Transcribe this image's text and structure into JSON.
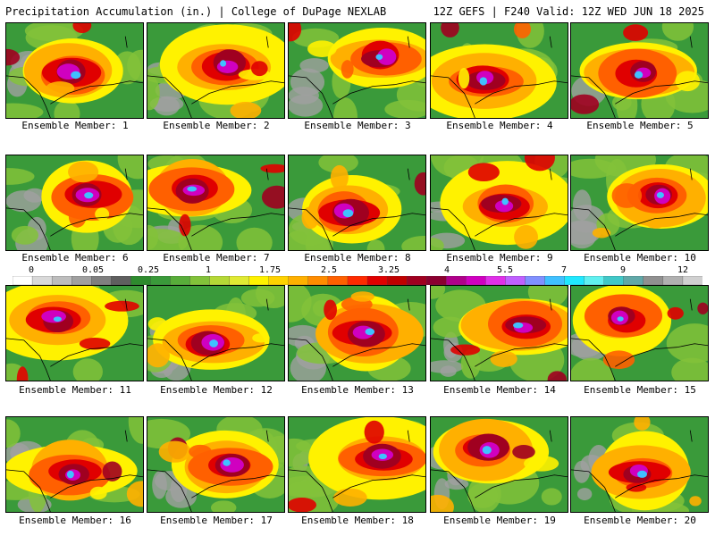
{
  "header": {
    "title": "Precipitation Accumulation (in.) | College of DuPage NEXLAB",
    "run_info": "12Z GEFS | F240 Valid: 12Z WED JUN 18 2025"
  },
  "panels": [
    {
      "label": "Ensemble Member: 1"
    },
    {
      "label": "Ensemble Member: 2"
    },
    {
      "label": "Ensemble Member: 3"
    },
    {
      "label": "Ensemble Member: 4"
    },
    {
      "label": "Ensemble Member: 5"
    },
    {
      "label": "Ensemble Member: 6"
    },
    {
      "label": "Ensemble Member: 7"
    },
    {
      "label": "Ensemble Member: 8"
    },
    {
      "label": "Ensemble Member: 9"
    },
    {
      "label": "Ensemble Member: 10"
    },
    {
      "label": "Ensemble Member: 11"
    },
    {
      "label": "Ensemble Member: 12"
    },
    {
      "label": "Ensemble Member: 13"
    },
    {
      "label": "Ensemble Member: 14"
    },
    {
      "label": "Ensemble Member: 15"
    },
    {
      "label": "Ensemble Member: 16"
    },
    {
      "label": "Ensemble Member: 17"
    },
    {
      "label": "Ensemble Member: 18"
    },
    {
      "label": "Ensemble Member: 19"
    },
    {
      "label": "Ensemble Member: 20"
    }
  ],
  "colorbar": {
    "labels": [
      "0",
      "0.05",
      "0.25",
      "1",
      "1.75",
      "2.5",
      "3.25",
      "4",
      "5.5",
      "7",
      "9",
      "12"
    ],
    "colors": [
      "#ffffff",
      "#d9d9d9",
      "#bdbdbd",
      "#a0a0a0",
      "#7f7f7f",
      "#5f5f5f",
      "#2e8b2e",
      "#3a9a3a",
      "#58ad3a",
      "#82c23a",
      "#b5d836",
      "#e0ea33",
      "#fff200",
      "#ffd200",
      "#ffb000",
      "#ff8c00",
      "#ff6000",
      "#ff2a00",
      "#e00000",
      "#c00000",
      "#a00020",
      "#8b0030",
      "#b0008a",
      "#d000c0",
      "#e030e8",
      "#c060ff",
      "#8090ff",
      "#40c0ff",
      "#20e8ff",
      "#60f0f0",
      "#40c8c8",
      "#60a8a8",
      "#909090",
      "#b0b0b0",
      "#d0d0d0"
    ]
  }
}
